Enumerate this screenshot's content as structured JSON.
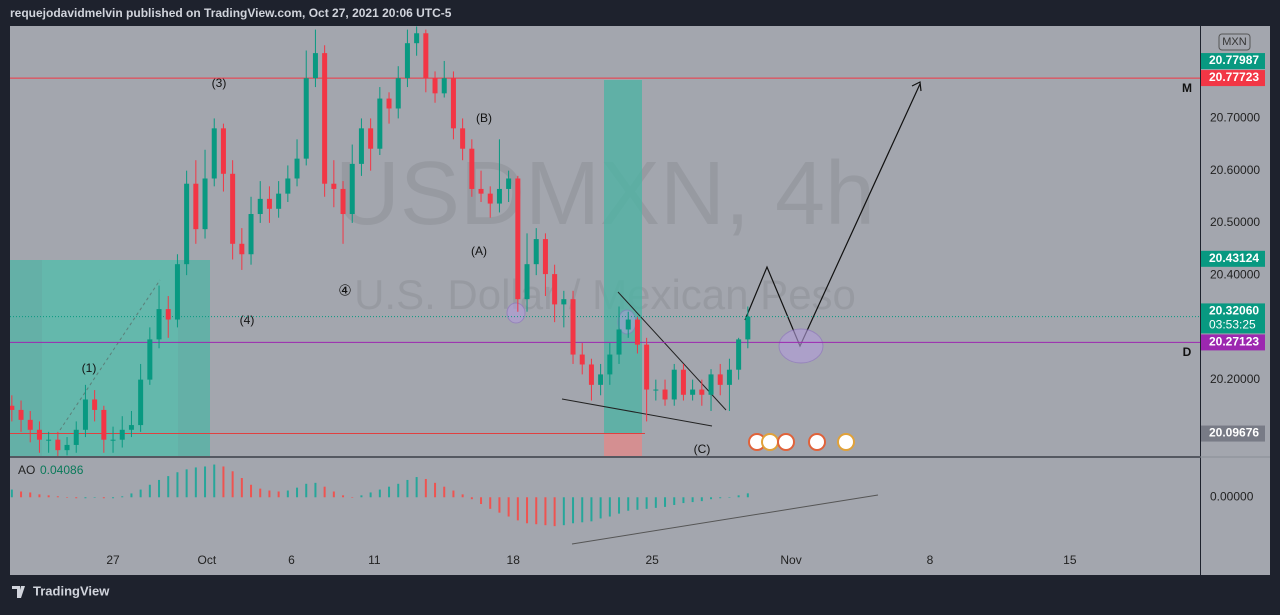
{
  "header": "requejodavidmelvin published on TradingView.com, Oct 27, 2021 20:06 UTC-5",
  "chart_data": {
    "type": "candlestick",
    "title": "USDMXN, 4h",
    "subtitle": "U.S. Dollar / Mexican Peso",
    "currency": "MXN",
    "up_color": "#089981",
    "down_color": "#f23645",
    "open": [
      20.15,
      20.142,
      20.123,
      20.104,
      20.085,
      20.085,
      20.065,
      20.075,
      20.104,
      20.162,
      20.142,
      20.085,
      20.085,
      20.104,
      20.113,
      20.2,
      20.277,
      20.335,
      20.315,
      20.421,
      20.575,
      20.488,
      20.585,
      20.681,
      20.594,
      20.46,
      20.44,
      20.517,
      20.546,
      20.527,
      20.556,
      20.585,
      20.623,
      20.777,
      20.825,
      20.575,
      20.565,
      20.517,
      20.613,
      20.681,
      20.642,
      20.738,
      20.719,
      20.777,
      20.844,
      20.863,
      20.777,
      20.748,
      20.777,
      20.681,
      20.642,
      20.565,
      20.556,
      20.537,
      20.565,
      20.585,
      20.354,
      20.421,
      20.469,
      20.402,
      20.344,
      20.354,
      20.248,
      20.229,
      20.19,
      20.21,
      20.248,
      20.296,
      20.315,
      20.267,
      20.181,
      20.181,
      20.162,
      20.219,
      20.171,
      20.181,
      20.171,
      20.21,
      20.19,
      20.219,
      20.277
    ],
    "high": [
      20.17,
      20.16,
      20.14,
      20.12,
      20.1,
      20.1,
      20.09,
      20.12,
      20.19,
      20.18,
      20.15,
      20.11,
      20.13,
      20.14,
      20.23,
      20.3,
      20.38,
      20.36,
      20.44,
      20.6,
      20.62,
      20.64,
      20.7,
      20.69,
      20.62,
      20.49,
      20.55,
      20.58,
      20.57,
      20.58,
      20.61,
      20.66,
      20.83,
      20.87,
      20.84,
      20.62,
      20.58,
      20.65,
      20.7,
      20.7,
      20.76,
      20.75,
      20.8,
      20.87,
      20.876,
      20.87,
      20.79,
      20.81,
      20.79,
      20.7,
      20.66,
      20.6,
      20.57,
      20.66,
      20.6,
      20.59,
      20.48,
      20.49,
      20.48,
      20.42,
      20.37,
      20.37,
      20.27,
      20.24,
      20.23,
      20.27,
      20.34,
      20.33,
      20.32,
      20.28,
      20.2,
      20.2,
      20.23,
      20.23,
      20.2,
      20.2,
      20.22,
      20.23,
      20.24,
      20.28,
      20.34
    ],
    "low": [
      20.12,
      20.1,
      20.08,
      20.06,
      20.06,
      20.05,
      20.055,
      20.06,
      20.09,
      20.12,
      20.06,
      20.06,
      20.07,
      20.09,
      20.1,
      20.19,
      20.26,
      20.28,
      20.3,
      20.4,
      20.46,
      20.47,
      20.57,
      20.56,
      20.43,
      20.41,
      20.42,
      20.5,
      20.5,
      20.51,
      20.54,
      20.57,
      20.61,
      20.76,
      20.55,
      20.53,
      20.46,
      20.5,
      20.59,
      20.6,
      20.63,
      20.69,
      20.7,
      20.76,
      20.82,
      20.75,
      20.73,
      20.74,
      20.66,
      20.62,
      20.55,
      20.54,
      20.51,
      20.52,
      20.54,
      20.33,
      20.33,
      20.4,
      20.36,
      20.31,
      20.3,
      20.23,
      20.21,
      20.16,
      20.17,
      20.19,
      20.23,
      20.28,
      20.25,
      20.12,
      20.16,
      20.15,
      20.15,
      20.16,
      20.16,
      20.15,
      20.14,
      20.17,
      20.14,
      20.2,
      20.26
    ],
    "close": [
      20.142,
      20.123,
      20.104,
      20.085,
      20.085,
      20.065,
      20.075,
      20.104,
      20.162,
      20.142,
      20.085,
      20.085,
      20.104,
      20.113,
      20.2,
      20.277,
      20.335,
      20.315,
      20.421,
      20.575,
      20.488,
      20.585,
      20.681,
      20.594,
      20.46,
      20.44,
      20.517,
      20.546,
      20.527,
      20.556,
      20.585,
      20.623,
      20.777,
      20.825,
      20.575,
      20.565,
      20.517,
      20.613,
      20.681,
      20.642,
      20.738,
      20.719,
      20.777,
      20.844,
      20.863,
      20.777,
      20.748,
      20.777,
      20.681,
      20.642,
      20.565,
      20.556,
      20.537,
      20.565,
      20.585,
      20.354,
      20.421,
      20.469,
      20.402,
      20.344,
      20.354,
      20.248,
      20.229,
      20.19,
      20.21,
      20.248,
      20.296,
      20.315,
      20.267,
      20.181,
      20.181,
      20.162,
      20.219,
      20.171,
      20.181,
      20.171,
      20.21,
      20.19,
      20.219,
      20.277,
      20.3206
    ],
    "xlim": [
      -0.2,
      129.15
    ],
    "xticks": [
      {
        "value": 11,
        "label": "27"
      },
      {
        "value": 21.2,
        "label": "Oct"
      },
      {
        "value": 30.4,
        "label": "6"
      },
      {
        "value": 39.4,
        "label": "11"
      },
      {
        "value": 54.5,
        "label": "18"
      },
      {
        "value": 69.6,
        "label": "25"
      },
      {
        "value": 84.7,
        "label": "Nov"
      },
      {
        "value": 99.8,
        "label": "8"
      },
      {
        "value": 115,
        "label": "15"
      }
    ],
    "ylim": [
      20.0538,
      20.8769
    ],
    "yticks": [
      {
        "value": 20.7,
        "label": "20.70000"
      },
      {
        "value": 20.6,
        "label": "20.60000"
      },
      {
        "value": 20.5,
        "label": "20.50000"
      },
      {
        "value": 20.4,
        "label": "20.40000"
      },
      {
        "value": 20.2,
        "label": "20.20000"
      }
    ],
    "price_labels": [
      {
        "value": 20.77987,
        "color": "#089981"
      },
      {
        "value": 20.77723,
        "color": "#f23645"
      },
      {
        "value": 20.43124,
        "color": "#089981"
      },
      {
        "value": 20.3206,
        "label": "20.32060",
        "color": "#089981",
        "countdown": "03:53:25"
      },
      {
        "value": 20.27123,
        "color": "#9c27b0"
      },
      {
        "value": 20.09676,
        "color": "#787b86"
      }
    ],
    "level_marks": [
      "M",
      "D"
    ],
    "wave_labels": [
      "(3)",
      "(B)",
      "(A)",
      "④",
      "(4)",
      "(1)",
      "(C)"
    ],
    "indicator": {
      "name": "AO",
      "last_value": 0.04086,
      "up_color": "#26a69a",
      "down_color": "#ef5350",
      "values": [
        0.08,
        0.06,
        0.05,
        0.03,
        0.02,
        0.01,
        0.0,
        -0.01,
        -0.01,
        0.0,
        -0.01,
        -0.01,
        0.01,
        0.04,
        0.08,
        0.13,
        0.18,
        0.22,
        0.26,
        0.29,
        0.31,
        0.32,
        0.34,
        0.32,
        0.27,
        0.2,
        0.13,
        0.09,
        0.07,
        0.06,
        0.07,
        0.1,
        0.14,
        0.15,
        0.11,
        0.06,
        0.02,
        0.0,
        0.02,
        0.05,
        0.08,
        0.11,
        0.14,
        0.18,
        0.21,
        0.19,
        0.15,
        0.11,
        0.07,
        0.03,
        -0.02,
        -0.07,
        -0.12,
        -0.16,
        -0.2,
        -0.24,
        -0.27,
        -0.28,
        -0.29,
        -0.3,
        -0.29,
        -0.27,
        -0.26,
        -0.25,
        -0.22,
        -0.2,
        -0.17,
        -0.14,
        -0.13,
        -0.12,
        -0.11,
        -0.1,
        -0.08,
        -0.06,
        -0.05,
        -0.04,
        -0.02,
        -0.01,
        0.0,
        0.02,
        0.04086
      ],
      "ylim": [
        -0.527,
        0.408
      ],
      "yticks": [
        {
          "value": 0,
          "label": "0.00000"
        }
      ]
    }
  },
  "footer": "TradingView"
}
